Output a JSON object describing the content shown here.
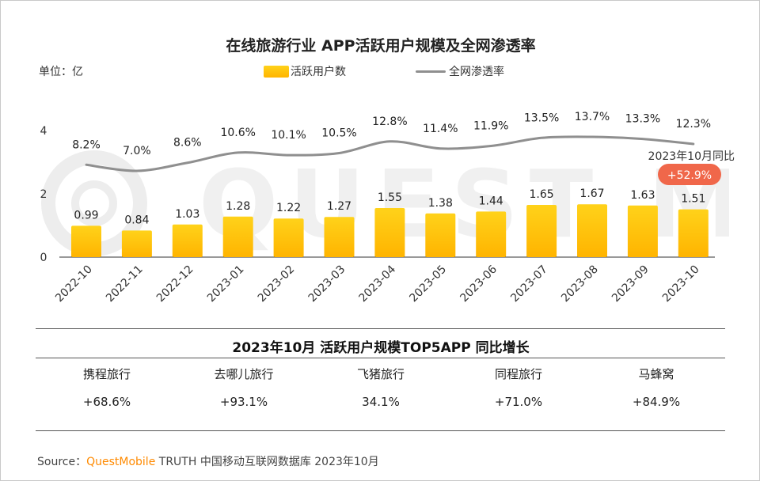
{
  "chart_data": {
    "type": "bar",
    "title": "在线旅游行业 APP活跃用户规模及全网渗透率",
    "unit_label": "单位：亿",
    "categories": [
      "2022-10",
      "2022-11",
      "2022-12",
      "2023-01",
      "2023-02",
      "2023-03",
      "2023-04",
      "2023-05",
      "2023-06",
      "2023-07",
      "2023-08",
      "2023-09",
      "2023-10"
    ],
    "ylim": [
      0,
      4
    ],
    "yticks": [
      "0",
      "2",
      "4"
    ],
    "series": [
      {
        "name": "活跃用户数",
        "type": "bar",
        "values": [
          0.99,
          0.84,
          1.03,
          1.28,
          1.22,
          1.27,
          1.55,
          1.38,
          1.44,
          1.65,
          1.67,
          1.63,
          1.51
        ],
        "labels": [
          "0.99",
          "0.84",
          "1.03",
          "1.28",
          "1.22",
          "1.27",
          "1.55",
          "1.38",
          "1.44",
          "1.65",
          "1.67",
          "1.63",
          "1.51"
        ]
      },
      {
        "name": "全网渗透率",
        "type": "line",
        "values": [
          8.2,
          7.0,
          8.6,
          10.6,
          10.1,
          10.5,
          12.8,
          11.4,
          11.9,
          13.5,
          13.7,
          13.3,
          12.3
        ],
        "labels": [
          "8.2%",
          "7.0%",
          "8.6%",
          "10.6%",
          "10.1%",
          "10.5%",
          "12.8%",
          "11.4%",
          "11.9%",
          "13.5%",
          "13.7%",
          "13.3%",
          "12.3%"
        ]
      }
    ],
    "annotation": {
      "text": "2023年10月同比",
      "badge": "+52.9%"
    },
    "legend": "top-center",
    "grid": false,
    "colors": {
      "bar_top": "#ffd21a",
      "bar_bottom": "#ffb400",
      "line": "#8f8f8f",
      "badge": "#f0674a"
    }
  },
  "table": {
    "title": "2023年10月 活跃用户规模TOP5APP 同比增长",
    "apps": [
      {
        "name": "携程旅行",
        "growth": "+68.6%"
      },
      {
        "name": "去哪儿旅行",
        "growth": "+93.1%"
      },
      {
        "name": "飞猪旅行",
        "growth": "34.1%"
      },
      {
        "name": "同程旅行",
        "growth": "+71.0%"
      },
      {
        "name": "马蜂窝",
        "growth": "+84.9%"
      }
    ]
  },
  "source": {
    "prefix": "Source：",
    "brand": "QuestMobile",
    "rest": " TRUTH 中国移动互联网数据库 2023年10月"
  }
}
